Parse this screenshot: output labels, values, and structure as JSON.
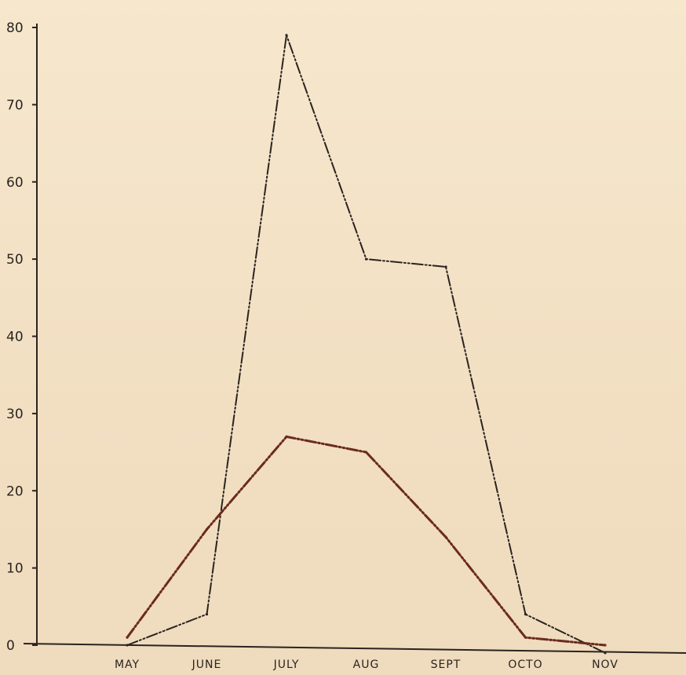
{
  "colors": {
    "paper": "#f4e3c8",
    "ink": "#2a2420",
    "series_upper": "#2a2420",
    "series_lower": "#6b2b1e"
  },
  "chart_data": {
    "type": "line",
    "title": "",
    "xlabel": "",
    "ylabel": "",
    "categories": [
      "MAY",
      "JUNE",
      "JULY",
      "AUG",
      "SEPT",
      "OCTO",
      "NOV"
    ],
    "ylim": [
      0,
      80
    ],
    "yticks": [
      "0",
      "10",
      "20",
      "30",
      "40",
      "50",
      "60",
      "70",
      "80"
    ],
    "grid": false,
    "legend": "none",
    "series": [
      {
        "values": [
          0,
          4,
          79,
          50,
          49,
          4,
          -1
        ],
        "style": "dash-dot",
        "color": "#2a2420"
      },
      {
        "values": [
          1,
          15,
          27,
          25,
          14,
          1,
          0
        ],
        "style": "dash-dot",
        "color": "#6b2b1e"
      }
    ]
  }
}
